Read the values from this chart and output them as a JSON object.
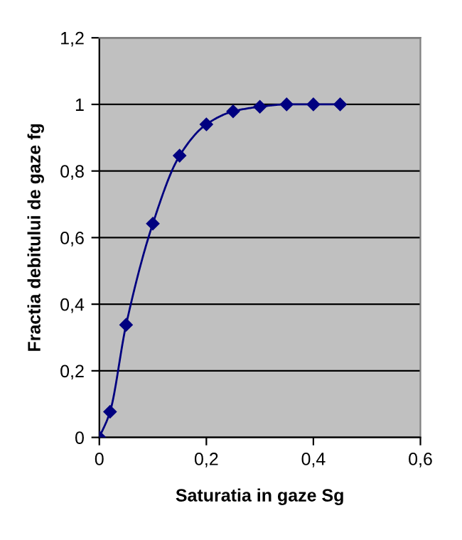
{
  "chart_data": {
    "type": "line",
    "xlabel": "Saturatia in gaze Sg",
    "ylabel": "Fractia debitului de gaze fg",
    "x": [
      0,
      0.02,
      0.05,
      0.1,
      0.15,
      0.2,
      0.25,
      0.3,
      0.35,
      0.4,
      0.45
    ],
    "series": [
      {
        "color": "#000080",
        "values": [
          0,
          0.077,
          0.338,
          0.642,
          0.846,
          0.94,
          0.979,
          0.993,
          1,
          1,
          1
        ]
      }
    ],
    "xlim": [
      0,
      0.6
    ],
    "xticks": [
      {
        "value": 0,
        "label": "0"
      },
      {
        "value": 0.2,
        "label": "0,2"
      },
      {
        "value": 0.4,
        "label": "0,4"
      },
      {
        "value": 0.6,
        "label": "0,6"
      }
    ],
    "ylim": [
      0,
      1.2
    ],
    "yticks": [
      {
        "value": 0,
        "label": "0"
      },
      {
        "value": 0.2,
        "label": "0,2"
      },
      {
        "value": 0.4,
        "label": "0,4"
      },
      {
        "value": 0.6,
        "label": "0,6"
      },
      {
        "value": 0.8,
        "label": "0,8"
      },
      {
        "value": 1,
        "label": "1"
      },
      {
        "value": 1.2,
        "label": "1,2"
      }
    ],
    "grid": "y",
    "marker": "diamond",
    "line_style": "solid",
    "legend": false
  }
}
